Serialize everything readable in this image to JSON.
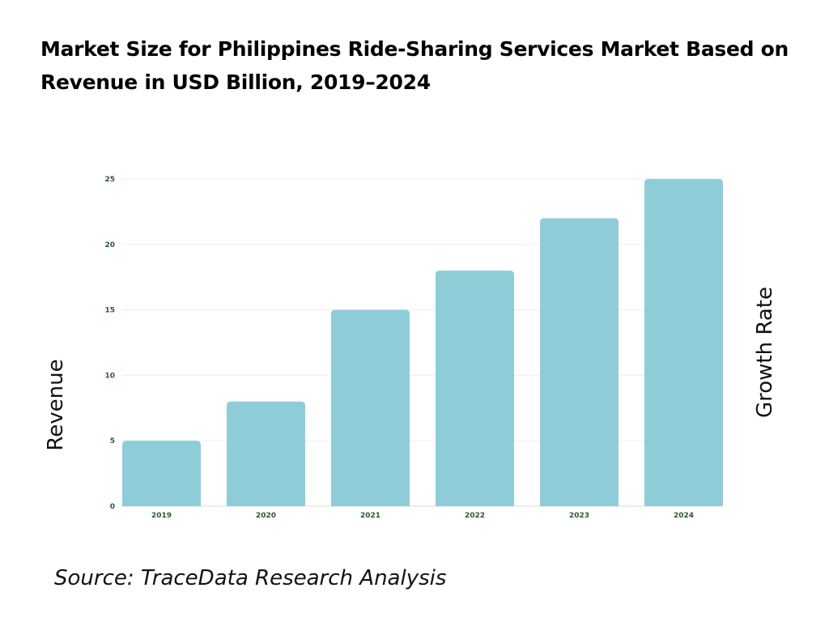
{
  "title": "Market Size for Philippines Ride-Sharing Services Market Based on Revenue in USD Billion, 2019–2024",
  "source": "Source: TraceData Research Analysis",
  "chart_data": {
    "type": "bar",
    "categories": [
      "2019",
      "2020",
      "2021",
      "2022",
      "2023",
      "2024"
    ],
    "values": [
      5,
      8,
      15,
      18,
      22,
      25
    ],
    "ylabel": "Revenue",
    "y2label": "Growth Rate",
    "ylim": [
      0,
      25
    ],
    "yticks": [
      0,
      5,
      10,
      15,
      20,
      25
    ],
    "grid": true,
    "bar_color": "#8ecdd8",
    "tick_color": "#2b5a2e"
  }
}
